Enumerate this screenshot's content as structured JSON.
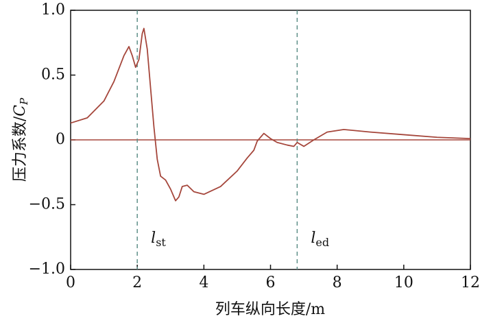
{
  "chart_data": {
    "type": "line",
    "x_label": "列车纵向长度/m",
    "y_label": "压力系数/",
    "y_label_symbol": "C",
    "y_label_sub": "P",
    "x": [
      0,
      0.5,
      1.0,
      1.3,
      1.6,
      1.75,
      1.85,
      1.95,
      2.05,
      2.15,
      2.2,
      2.3,
      2.4,
      2.5,
      2.6,
      2.7,
      2.85,
      3.0,
      3.15,
      3.25,
      3.35,
      3.5,
      3.7,
      4.0,
      4.5,
      5.0,
      5.3,
      5.5,
      5.6,
      5.8,
      6.0,
      6.2,
      6.5,
      6.7,
      6.8,
      7.0,
      7.3,
      7.7,
      8.2,
      9.0,
      10,
      11,
      12
    ],
    "series": [
      {
        "color": "#a5463b",
        "values": [
          0.13,
          0.17,
          0.3,
          0.45,
          0.65,
          0.72,
          0.65,
          0.56,
          0.62,
          0.82,
          0.86,
          0.7,
          0.4,
          0.1,
          -0.15,
          -0.28,
          -0.31,
          -0.38,
          -0.47,
          -0.44,
          -0.36,
          -0.35,
          -0.4,
          -0.42,
          -0.36,
          -0.24,
          -0.14,
          -0.08,
          -0.01,
          0.05,
          0.01,
          -0.02,
          -0.04,
          -0.05,
          -0.02,
          -0.05,
          0.0,
          0.06,
          0.08,
          0.06,
          0.04,
          0.02,
          0.01
        ]
      }
    ],
    "hlines": [
      0
    ],
    "vlines": [
      2.0,
      6.8
    ],
    "vline_color": "#5e8f88",
    "annotations": [
      {
        "text": "l",
        "sub": "st"
      },
      {
        "text": "l",
        "sub": "ed"
      }
    ],
    "xlim": [
      0,
      12
    ],
    "xticks": [
      0,
      2,
      4,
      6,
      8,
      10,
      12
    ],
    "ylim": [
      -1,
      1
    ],
    "yticks": [
      {
        "value": -1,
        "label": "−1.0"
      },
      {
        "value": -0.5,
        "label": "−0.5"
      },
      0,
      0.5,
      {
        "value": 1,
        "label": "1.0"
      }
    ]
  }
}
